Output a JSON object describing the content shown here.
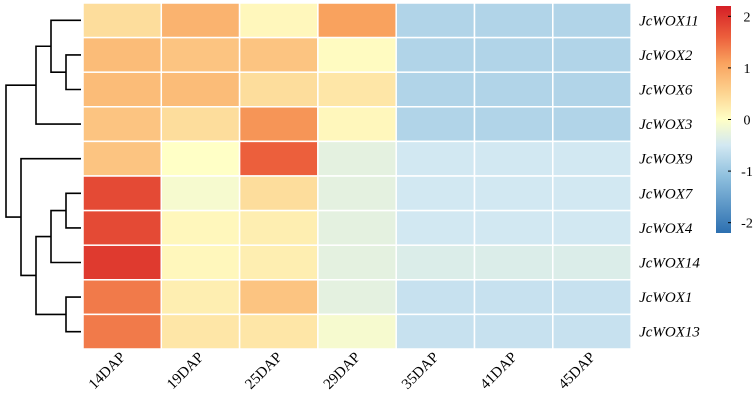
{
  "chart_data": {
    "type": "heatmap",
    "columns": [
      "14DAP",
      "19DAP",
      "25DAP",
      "29DAP",
      "35DAP",
      "41DAP",
      "45DAP"
    ],
    "rows": [
      "JcWOX11",
      "JcWOX2",
      "JcWOX6",
      "JcWOX3",
      "JcWOX9",
      "JcWOX7",
      "JcWOX4",
      "JcWOX14",
      "JcWOX1",
      "JcWOX13"
    ],
    "values": [
      [
        0.4,
        0.9,
        0.1,
        1.1,
        -0.8,
        -0.8,
        -0.8
      ],
      [
        0.8,
        0.7,
        0.7,
        0.05,
        -0.8,
        -0.8,
        -0.8
      ],
      [
        0.8,
        0.8,
        0.4,
        0.3,
        -0.8,
        -0.8,
        -0.8
      ],
      [
        0.7,
        0.4,
        1.2,
        0.1,
        -0.8,
        -0.8,
        -0.8
      ],
      [
        0.7,
        0.0,
        1.6,
        -0.3,
        -0.5,
        -0.5,
        -0.5
      ],
      [
        1.8,
        -0.1,
        0.4,
        -0.3,
        -0.5,
        -0.5,
        -0.5
      ],
      [
        1.8,
        0.1,
        0.2,
        -0.3,
        -0.5,
        -0.5,
        -0.5
      ],
      [
        1.95,
        0.1,
        0.2,
        -0.3,
        -0.4,
        -0.4,
        -0.4
      ],
      [
        1.4,
        0.2,
        0.7,
        -0.3,
        -0.6,
        -0.6,
        -0.6
      ],
      [
        1.4,
        0.3,
        0.3,
        -0.1,
        -0.6,
        -0.6,
        -0.6
      ]
    ],
    "colorbar": {
      "min": -2.2,
      "max": 2.2,
      "ticks": [
        2,
        1,
        0,
        -1,
        -2
      ],
      "tick_labels": [
        "2",
        "1",
        "0",
        "-1",
        "-2"
      ],
      "stops": [
        {
          "value": -2.2,
          "color": "#2c6fb0"
        },
        {
          "value": -1.1,
          "color": "#8fc0de"
        },
        {
          "value": -0.5,
          "color": "#d2e8f2"
        },
        {
          "value": 0.0,
          "color": "#ffffc6"
        },
        {
          "value": 0.5,
          "color": "#fdd592"
        },
        {
          "value": 1.1,
          "color": "#f9a25e"
        },
        {
          "value": 1.6,
          "color": "#ec5f3c"
        },
        {
          "value": 2.2,
          "color": "#d51f26"
        }
      ]
    },
    "dendrogram": {
      "side": "left",
      "merges": [
        [
          1,
          2
        ],
        [
          0,
          10
        ],
        [
          3,
          11
        ],
        [
          5,
          6
        ],
        [
          13,
          7
        ],
        [
          8,
          9
        ],
        [
          14,
          15
        ],
        [
          4,
          16
        ],
        [
          12,
          17
        ]
      ]
    },
    "grid_color": "#ffffff",
    "title": "",
    "xlabel": "",
    "ylabel": ""
  }
}
